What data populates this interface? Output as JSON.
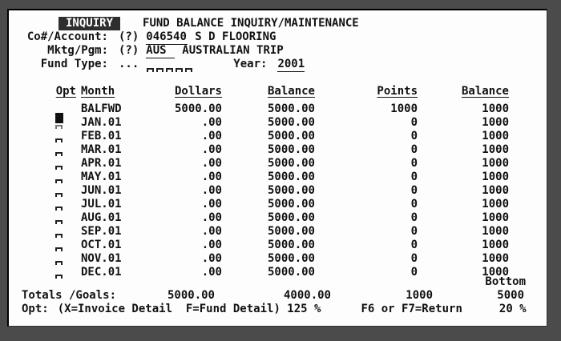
{
  "colors": {
    "frame": "#4b4b4b",
    "screen": "#fdfdfd",
    "text": "#111111",
    "highlight_bg": "#2e2e2e",
    "highlight_text": "#ffffff"
  },
  "header": {
    "mode_tag": "INQUIRY",
    "title": "FUND BALANCE INQUIRY/MAINTENANCE"
  },
  "fields": {
    "account": {
      "label": "Co#/Account:",
      "help": "(?)",
      "value": "046540",
      "desc": "S D FLOORING"
    },
    "program": {
      "label": "Mktg/Pgm:",
      "help": "(?)",
      "value": "AUS",
      "desc": "AUSTRALIAN TRIP"
    },
    "fund_type": {
      "label": "Fund Type:",
      "dots": "...",
      "positions": 5
    },
    "year": {
      "label": "Year:",
      "value": "2001"
    }
  },
  "table": {
    "headers": {
      "opt": "Opt",
      "month": "Month",
      "dollars": "Dollars",
      "balance": "Balance",
      "points": "Points",
      "balance2": "Balance"
    },
    "rows": [
      {
        "opt": "none",
        "month": "BALFWD",
        "dollars": "5000.00",
        "balance": "5000.00",
        "points": "1000",
        "balance2": "1000"
      },
      {
        "opt": "cursor",
        "month": "JAN.01",
        "dollars": ".00",
        "balance": "5000.00",
        "points": "0",
        "balance2": "1000"
      },
      {
        "opt": "field",
        "month": "FEB.01",
        "dollars": ".00",
        "balance": "5000.00",
        "points": "0",
        "balance2": "1000"
      },
      {
        "opt": "field",
        "month": "MAR.01",
        "dollars": ".00",
        "balance": "5000.00",
        "points": "0",
        "balance2": "1000"
      },
      {
        "opt": "field",
        "month": "APR.01",
        "dollars": ".00",
        "balance": "5000.00",
        "points": "0",
        "balance2": "1000"
      },
      {
        "opt": "field",
        "month": "MAY.01",
        "dollars": ".00",
        "balance": "5000.00",
        "points": "0",
        "balance2": "1000"
      },
      {
        "opt": "field",
        "month": "JUN.01",
        "dollars": ".00",
        "balance": "5000.00",
        "points": "0",
        "balance2": "1000"
      },
      {
        "opt": "field",
        "month": "JUL.01",
        "dollars": ".00",
        "balance": "5000.00",
        "points": "0",
        "balance2": "1000"
      },
      {
        "opt": "field",
        "month": "AUG.01",
        "dollars": ".00",
        "balance": "5000.00",
        "points": "0",
        "balance2": "1000"
      },
      {
        "opt": "field",
        "month": "SEP.01",
        "dollars": ".00",
        "balance": "5000.00",
        "points": "0",
        "balance2": "1000"
      },
      {
        "opt": "field",
        "month": "OCT.01",
        "dollars": ".00",
        "balance": "5000.00",
        "points": "0",
        "balance2": "1000"
      },
      {
        "opt": "field",
        "month": "NOV.01",
        "dollars": ".00",
        "balance": "5000.00",
        "points": "0",
        "balance2": "1000"
      },
      {
        "opt": "field",
        "month": "DEC.01",
        "dollars": ".00",
        "balance": "5000.00",
        "points": "0",
        "balance2": "1000"
      }
    ]
  },
  "status": {
    "position_label": "Bottom"
  },
  "totals": {
    "label": "Totals /Goals:",
    "dollars": "5000.00",
    "balance": "4000.00",
    "points": "1000",
    "balance2": "5000"
  },
  "footer": {
    "label": "Opt:",
    "options": "(X=Invoice Detail  F=Fund Detail)",
    "pct1": "125 %",
    "fkeys": "F6 or F7=Return",
    "pct2": "20 %"
  }
}
